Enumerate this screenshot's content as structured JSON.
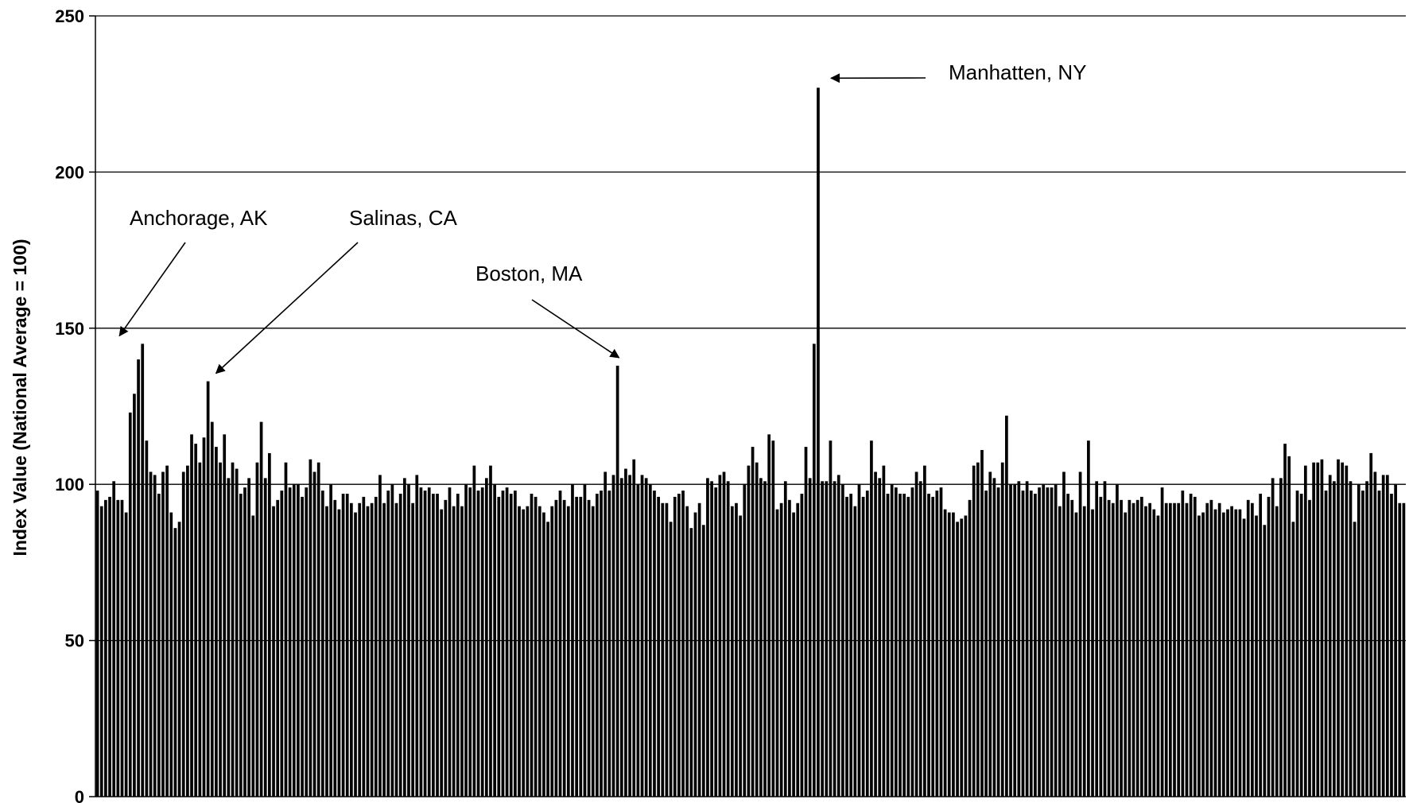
{
  "chart_data": {
    "type": "bar",
    "title": "",
    "xlabel": "",
    "ylabel": "Index Value (National Average = 100)",
    "ylim": [
      0,
      250
    ],
    "yticks": [
      0,
      50,
      100,
      150,
      200,
      250
    ],
    "grid": true,
    "legend": "none",
    "colors": {
      "bar": "#000000",
      "gridline": "#000000",
      "background": "#ffffff"
    },
    "values": [
      98,
      93,
      95,
      96,
      101,
      95,
      95,
      91,
      123,
      129,
      140,
      145,
      114,
      104,
      103,
      97,
      104,
      106,
      91,
      86,
      88,
      104,
      106,
      116,
      113,
      107,
      115,
      133,
      120,
      112,
      107,
      116,
      102,
      107,
      105,
      97,
      99,
      102,
      90,
      107,
      120,
      102,
      110,
      93,
      95,
      98,
      107,
      99,
      100,
      100,
      96,
      99,
      108,
      104,
      107,
      98,
      93,
      100,
      95,
      92,
      97,
      97,
      94,
      91,
      94,
      96,
      93,
      94,
      96,
      103,
      94,
      98,
      100,
      94,
      97,
      102,
      100,
      94,
      103,
      99,
      98,
      99,
      97,
      97,
      92,
      95,
      99,
      93,
      97,
      93,
      100,
      99,
      106,
      98,
      99,
      102,
      106,
      100,
      96,
      98,
      99,
      97,
      98,
      93,
      92,
      93,
      97,
      96,
      93,
      91,
      88,
      93,
      95,
      98,
      95,
      93,
      100,
      96,
      96,
      100,
      95,
      93,
      97,
      98,
      104,
      98,
      103,
      138,
      102,
      105,
      103,
      108,
      100,
      103,
      102,
      100,
      98,
      96,
      94,
      94,
      88,
      96,
      97,
      98,
      93,
      86,
      91,
      94,
      87,
      102,
      101,
      99,
      103,
      104,
      101,
      93,
      94,
      90,
      100,
      106,
      112,
      107,
      102,
      101,
      116,
      114,
      92,
      94,
      101,
      95,
      91,
      94,
      97,
      112,
      102,
      145,
      227,
      101,
      101,
      114,
      101,
      103,
      100,
      96,
      97,
      93,
      100,
      96,
      98,
      114,
      104,
      102,
      106,
      97,
      100,
      99,
      97,
      97,
      96,
      99,
      104,
      101,
      106,
      97,
      96,
      98,
      99,
      92,
      91,
      91,
      88,
      89,
      90,
      95,
      106,
      107,
      111,
      98,
      104,
      102,
      99,
      107,
      122,
      100,
      100,
      101,
      98,
      101,
      98,
      97,
      99,
      100,
      99,
      99,
      100,
      93,
      104,
      97,
      95,
      91,
      104,
      93,
      114,
      92,
      101,
      96,
      101,
      95,
      94,
      100,
      95,
      91,
      95,
      94,
      95,
      96,
      93,
      94,
      92,
      90,
      99,
      94,
      94,
      94,
      94,
      98,
      94,
      97,
      96,
      90,
      91,
      94,
      95,
      92,
      94,
      91,
      92,
      93,
      92,
      92,
      89,
      95,
      94,
      90,
      97,
      87,
      96,
      102,
      93,
      102,
      113,
      109,
      88,
      98,
      97,
      106,
      95,
      107,
      107,
      108,
      98,
      103,
      101,
      108,
      107,
      106,
      101,
      88,
      100,
      98,
      101,
      110,
      104,
      98,
      103,
      103,
      97,
      100,
      94,
      94
    ],
    "annotations": [
      {
        "text": "Anchorage, AK",
        "target_index": 11
      },
      {
        "text": "Salinas, CA",
        "target_index": 27
      },
      {
        "text": "Boston, MA",
        "target_index": 127
      },
      {
        "text": "Manhatten, NY",
        "target_index": 176
      }
    ]
  }
}
